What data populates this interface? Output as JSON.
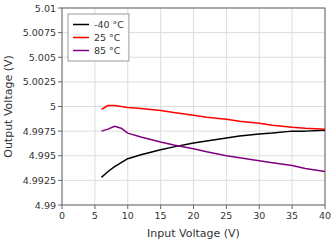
{
  "chart_data": {
    "type": "line",
    "xlabel": "Input Voltage (V)",
    "ylabel": "Output Voltage (V)",
    "x": [
      6.0,
      7.0,
      8.0,
      9.0,
      10.0,
      12.0,
      15.0,
      17.0,
      20.0,
      22.0,
      25.0,
      27.0,
      30.0,
      32.0,
      35.0,
      37.0,
      40.0
    ],
    "series": [
      {
        "name": "-40 °C",
        "color": "#000000",
        "values": [
          4.9928,
          4.9934,
          4.9939,
          4.9943,
          4.9947,
          4.9951,
          4.9956,
          4.9959,
          4.9963,
          4.9965,
          4.9968,
          4.997,
          4.9972,
          4.9973,
          4.9975,
          4.9975,
          4.9976
        ]
      },
      {
        "name": "25 °C",
        "color": "#ff0000",
        "values": [
          4.9997,
          5.0001,
          5.0001,
          5.0,
          4.9999,
          4.9998,
          4.9996,
          4.9994,
          4.9991,
          4.9989,
          4.9987,
          4.9985,
          4.9983,
          4.9981,
          4.9979,
          4.9978,
          4.9977
        ]
      },
      {
        "name": "85 °C",
        "color": "#800080",
        "values": [
          4.9975,
          4.9977,
          4.998,
          4.9978,
          4.9973,
          4.9969,
          4.9964,
          4.9961,
          4.9957,
          4.9954,
          4.995,
          4.9948,
          4.9945,
          4.9943,
          4.994,
          4.9937,
          4.9934
        ]
      }
    ],
    "xlim": [
      0,
      40
    ],
    "xticks": [
      0,
      5,
      10,
      15,
      20,
      25,
      30,
      35,
      40
    ],
    "ylim": [
      4.99,
      5.01
    ],
    "yticks": [
      4.99,
      4.9925,
      4.995,
      4.9975,
      5,
      5.0025,
      5.005,
      5.0075,
      5.01
    ],
    "grid": true,
    "legend": "upper left"
  }
}
